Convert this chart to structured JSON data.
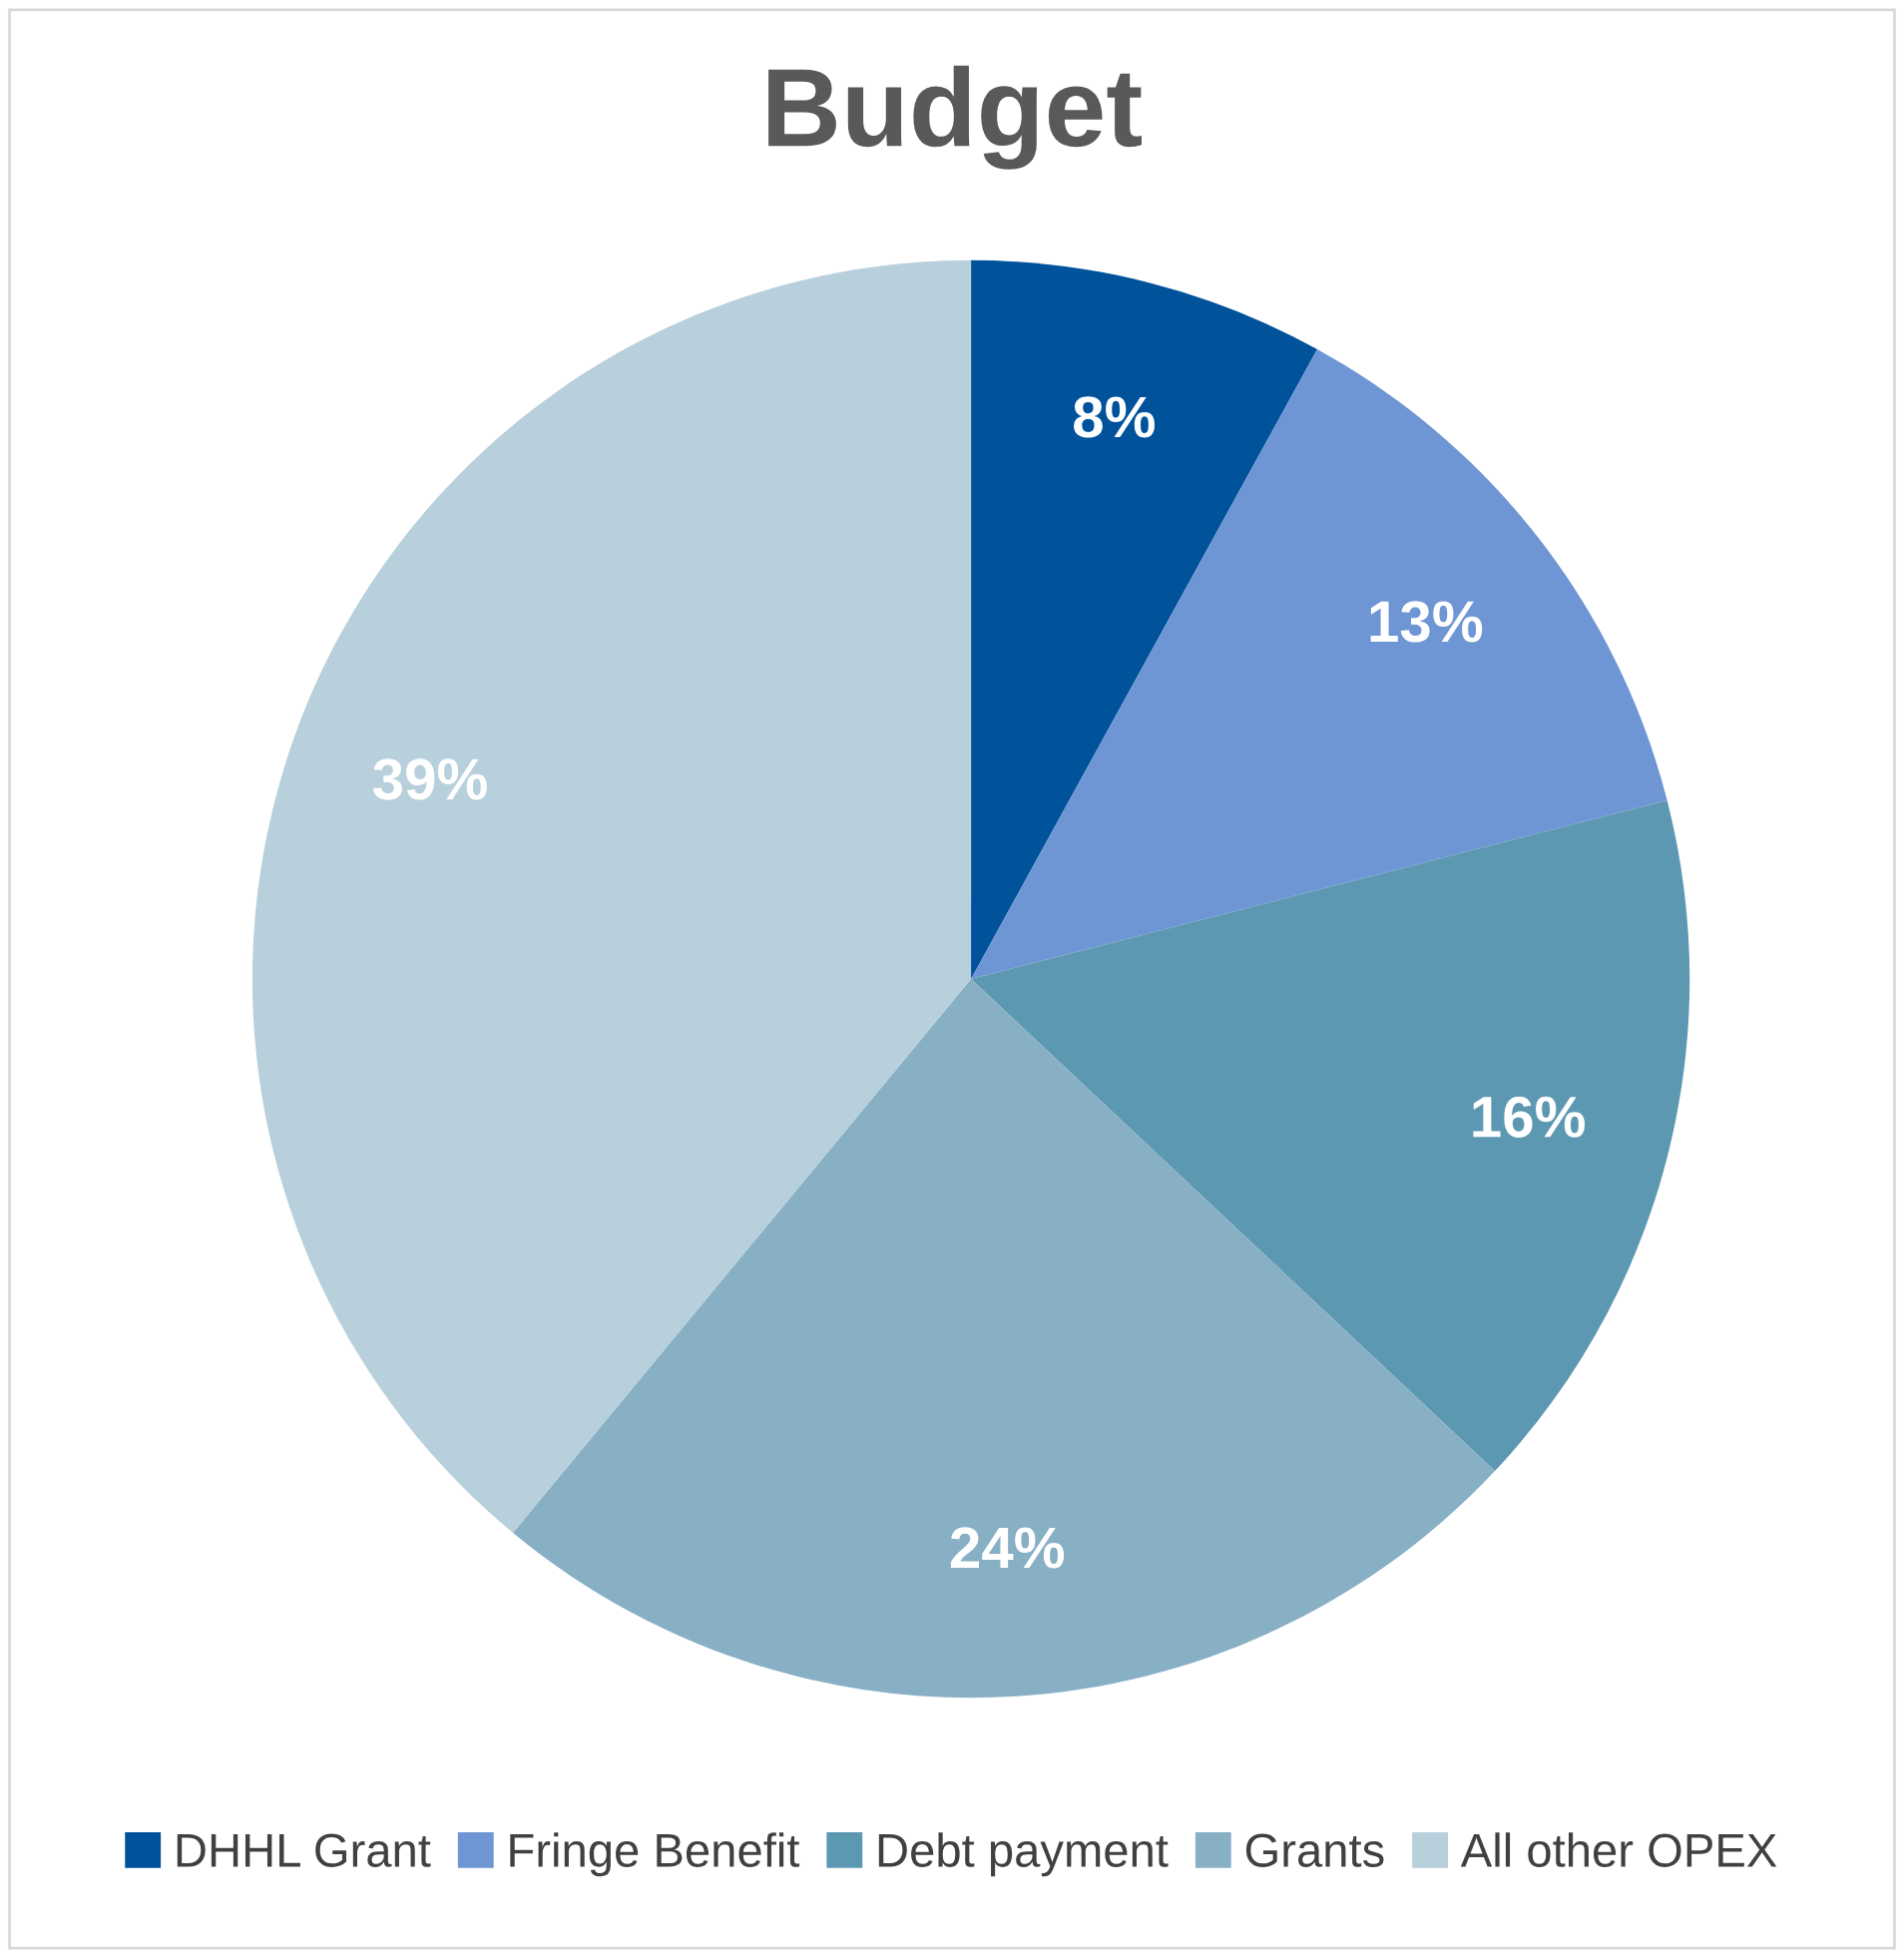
{
  "chart_data": {
    "type": "pie",
    "title": "Budget",
    "categories": [
      "DHHL Grant",
      "Fringe Benefit",
      "Debt payment",
      "Grants",
      "All other OPEX"
    ],
    "values": [
      8,
      13,
      16,
      24,
      39
    ],
    "colors": [
      "#00529b",
      "#6f96d4",
      "#5d98b2",
      "#88b0c5",
      "#b8cfdc"
    ],
    "value_labels": [
      "8%",
      "13%",
      "16%",
      "24%",
      "39%"
    ],
    "legend": "bottom"
  }
}
